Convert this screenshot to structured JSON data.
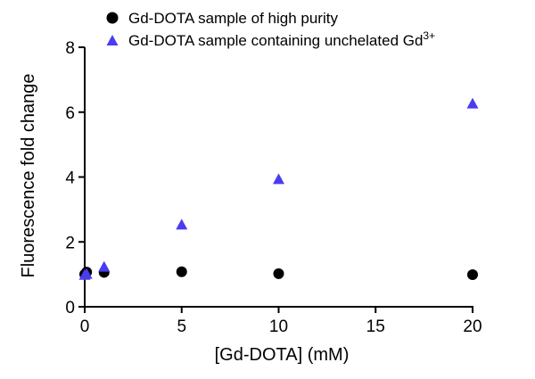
{
  "chart_data": {
    "type": "scatter",
    "xlabel": "[Gd-DOTA] (mM)",
    "ylabel": "Fluorescence fold change",
    "xlim": [
      0,
      20
    ],
    "ylim": [
      0,
      8
    ],
    "xticks": [
      "0",
      "5",
      "10",
      "15",
      "20"
    ],
    "yticks": [
      "0",
      "2",
      "4",
      "6",
      "8"
    ],
    "legend_position": "top",
    "grid": false,
    "series": [
      {
        "name": "Gd-DOTA sample of high purity",
        "marker": "circle",
        "color": "#000000",
        "x": [
          0,
          0.1,
          1,
          5,
          10,
          20
        ],
        "y": [
          1.0,
          1.07,
          1.06,
          1.08,
          1.02,
          0.99
        ]
      },
      {
        "name": "Gd-DOTA sample containing unchelated Gd",
        "name_superscript": "3+",
        "marker": "triangle",
        "color": "#4a3cf2",
        "x": [
          0,
          0.1,
          1,
          5,
          10,
          20
        ],
        "y": [
          0.97,
          1.0,
          1.22,
          2.52,
          3.92,
          6.25
        ]
      }
    ]
  }
}
